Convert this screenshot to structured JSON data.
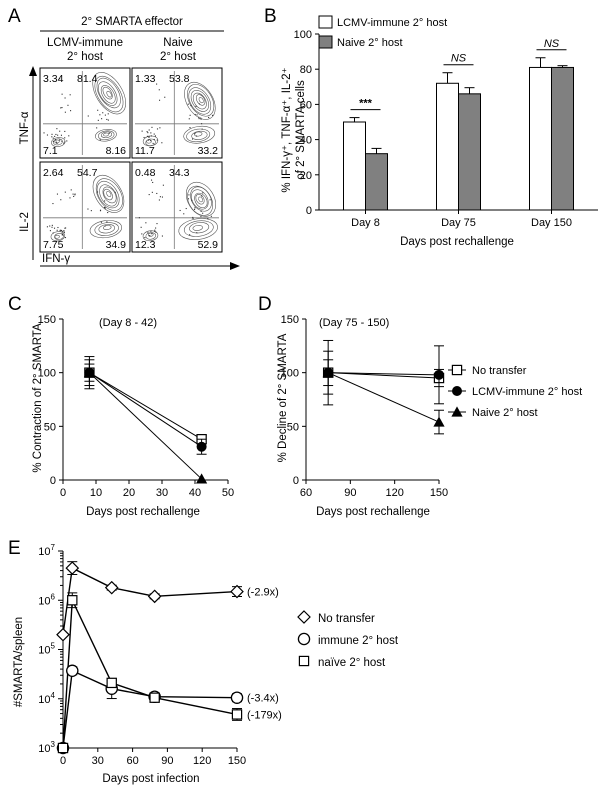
{
  "panel_labels": [
    "A",
    "B",
    "C",
    "D",
    "E"
  ],
  "panel_a": {
    "header": "2° SMARTA effector",
    "col_headers": [
      {
        "line1": "LCMV-immune",
        "line2": "2° host"
      },
      {
        "line1": "Naive",
        "line2": "2° host"
      }
    ],
    "row_labels": [
      "TNF-α",
      "IL-2"
    ],
    "x_label": "IFN-γ",
    "plots": [
      {
        "row": 0,
        "col": 0,
        "ul": "3.34",
        "ur": "81.4",
        "ll": "7.1",
        "lr": "8.16"
      },
      {
        "row": 0,
        "col": 1,
        "ul": "1.33",
        "ur": "53.8",
        "ll": "11.7",
        "lr": "33.2"
      },
      {
        "row": 1,
        "col": 0,
        "ul": "2.64",
        "ur": "54.7",
        "ll": "7.75",
        "lr": "34.9"
      },
      {
        "row": 1,
        "col": 1,
        "ul": "0.48",
        "ur": "34.3",
        "ll": "12.3",
        "lr": "52.9"
      }
    ]
  },
  "chart_data": [
    {
      "panel": "B",
      "type": "bar",
      "categories": [
        "Day 8",
        "Day 75",
        "Day 150"
      ],
      "series": [
        {
          "name": "LCMV-immune 2° host",
          "color": "#ffffff",
          "values": [
            50,
            72,
            81
          ],
          "errors": [
            2.5,
            6,
            5.5
          ]
        },
        {
          "name": "Naive 2° host",
          "color": "#808080",
          "values": [
            32,
            66,
            81
          ],
          "errors": [
            3,
            3.5,
            1
          ]
        }
      ],
      "significance": [
        "***",
        "NS",
        "NS"
      ],
      "ylabel_lines": [
        "% IFN-γ⁺, TNF-α⁺, IL-2⁺",
        "of 2° SMARTA cells"
      ],
      "xlabel": "Days post rechallenge",
      "ylim": [
        0,
        100
      ],
      "yticks": [
        0,
        20,
        40,
        60,
        80,
        100
      ]
    },
    {
      "panel": "C",
      "type": "line",
      "annotation": "(Day 8 - 42)",
      "ylabel": "% Contraction of 2° SMARTA",
      "xlabel": "Days post rechallenge",
      "xlim": [
        0,
        50
      ],
      "xticks": [
        0,
        10,
        20,
        30,
        40,
        50
      ],
      "ylim": [
        0,
        150
      ],
      "yticks": [
        0,
        50,
        100,
        150
      ],
      "series": [
        {
          "marker": "square-open",
          "x": [
            8,
            42
          ],
          "y": [
            100,
            38
          ],
          "err": [
            15,
            4
          ]
        },
        {
          "marker": "circle-filled",
          "x": [
            8,
            42
          ],
          "y": [
            100,
            31
          ],
          "err": [
            8,
            7
          ]
        },
        {
          "marker": "triangle-filled",
          "x": [
            8,
            42
          ],
          "y": [
            100,
            1
          ],
          "err": [
            12,
            0
          ]
        }
      ]
    },
    {
      "panel": "D",
      "type": "line",
      "annotation": "(Day 75 - 150)",
      "ylabel": "% Decline of 2° SMARTA",
      "xlabel": "Days post rechallenge",
      "xlim": [
        60,
        150
      ],
      "xticks": [
        60,
        90,
        120,
        150
      ],
      "ylim": [
        0,
        150
      ],
      "yticks": [
        0,
        50,
        100,
        150
      ],
      "legend": {
        "position": "right",
        "entries": [
          "No transfer",
          "LCMV-immune 2° host",
          "Naive 2° host"
        ]
      },
      "series": [
        {
          "name": "No transfer",
          "marker": "square-open",
          "x": [
            75,
            150
          ],
          "y": [
            100,
            95
          ],
          "err": [
            12,
            8
          ]
        },
        {
          "name": "LCMV-immune 2° host",
          "marker": "circle-filled",
          "x": [
            75,
            150
          ],
          "y": [
            100,
            98
          ],
          "err": [
            30,
            27
          ]
        },
        {
          "name": "Naive 2° host",
          "marker": "triangle-filled",
          "x": [
            75,
            150
          ],
          "y": [
            100,
            54
          ],
          "err": [
            20,
            11
          ]
        }
      ]
    },
    {
      "panel": "E",
      "type": "line",
      "y_scale": "log",
      "ylabel": "#SMARTA/spleen",
      "xlabel": "Days post infection",
      "xlim": [
        0,
        150
      ],
      "xticks": [
        0,
        30,
        60,
        90,
        120,
        150
      ],
      "ylim": [
        1000,
        10000000
      ],
      "ytick_exponents": [
        3,
        4,
        5,
        6,
        7
      ],
      "legend": {
        "position": "right",
        "entries": [
          "No transfer",
          "immune 2° host",
          "naïve 2° host"
        ]
      },
      "series": [
        {
          "name": "No transfer",
          "marker": "diamond-open",
          "fold_label": "(-2.9x)",
          "x": [
            0,
            8,
            42,
            79,
            150
          ],
          "y": [
            200000,
            4500000,
            1800000,
            1200000,
            1500000
          ],
          "err_log": [
            0,
            0.13,
            0.05,
            0.05,
            0.1
          ]
        },
        {
          "name": "immune 2° host",
          "marker": "circle-open",
          "fold_label": "(-3.4x)",
          "x": [
            0,
            8,
            42,
            79,
            150
          ],
          "y": [
            1000,
            37000,
            16000,
            11000,
            10500
          ],
          "err_log": [
            0,
            0.08,
            0.2,
            0.07,
            0.08
          ]
        },
        {
          "name": "naïve 2° host",
          "marker": "square-open",
          "fold_label": "(-179x)",
          "x": [
            0,
            8,
            42,
            79,
            150
          ],
          "y": [
            1000,
            1000000,
            21000,
            10500,
            4800
          ],
          "err_log": [
            0,
            0.15,
            0.05,
            0.04,
            0.12
          ]
        }
      ]
    }
  ]
}
